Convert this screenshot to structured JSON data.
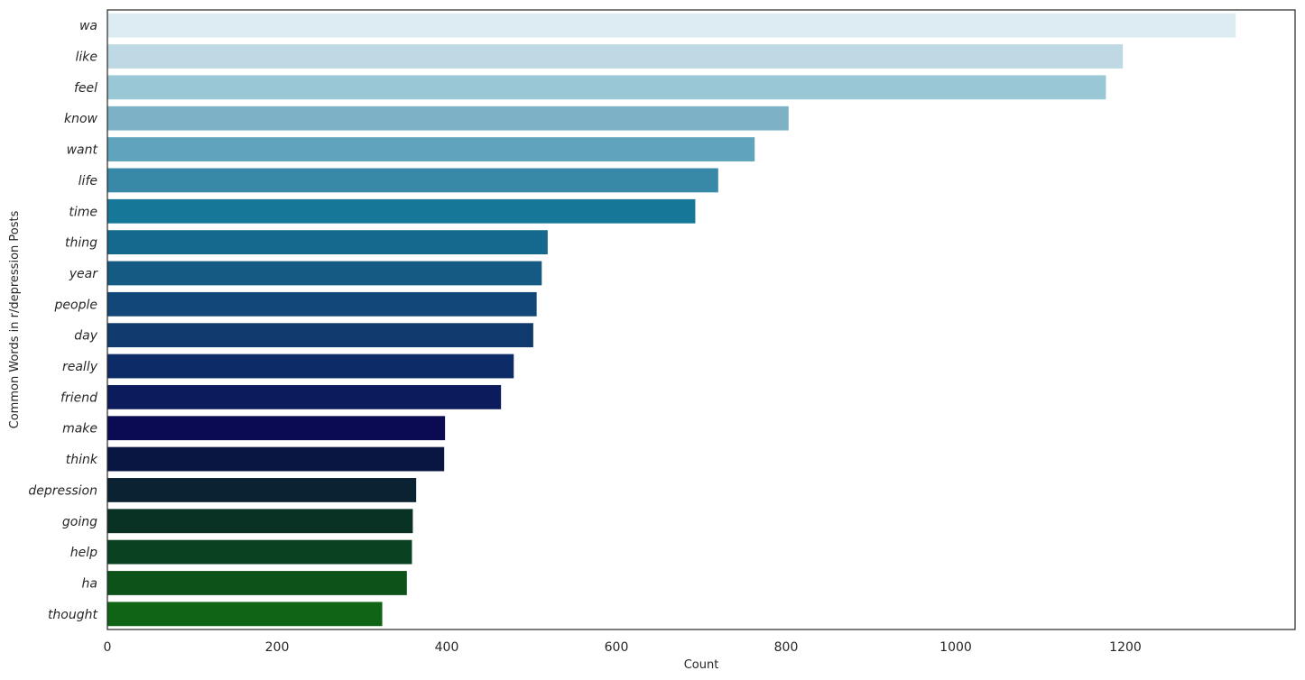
{
  "chart_data": {
    "type": "bar",
    "orientation": "horizontal",
    "title": "",
    "xlabel": "Count",
    "ylabel": "Common Words in r/depression Posts",
    "xlim": [
      0,
      1400
    ],
    "xticks": [
      0,
      200,
      400,
      600,
      800,
      1000,
      1200
    ],
    "grid": false,
    "categories": [
      "wa",
      "like",
      "feel",
      "know",
      "want",
      "life",
      "time",
      "thing",
      "year",
      "people",
      "day",
      "really",
      "friend",
      "make",
      "think",
      "depression",
      "going",
      "help",
      "ha",
      "thought"
    ],
    "values": [
      1330,
      1197,
      1177,
      803,
      763,
      720,
      693,
      519,
      512,
      506,
      502,
      479,
      464,
      398,
      397,
      364,
      360,
      359,
      353,
      324
    ],
    "colors": [
      "#ddebf2",
      "#bed9e4",
      "#9ac7d6",
      "#7db2c6",
      "#5fa3bd",
      "#3889a8",
      "#167798",
      "#15698e",
      "#145a83",
      "#124779",
      "#10396d",
      "#0d2b66",
      "#0c1b5c",
      "#0a0b52",
      "#0a1642",
      "#0b2233",
      "#0a3224",
      "#0a4120",
      "#0d5219",
      "#106416"
    ]
  }
}
